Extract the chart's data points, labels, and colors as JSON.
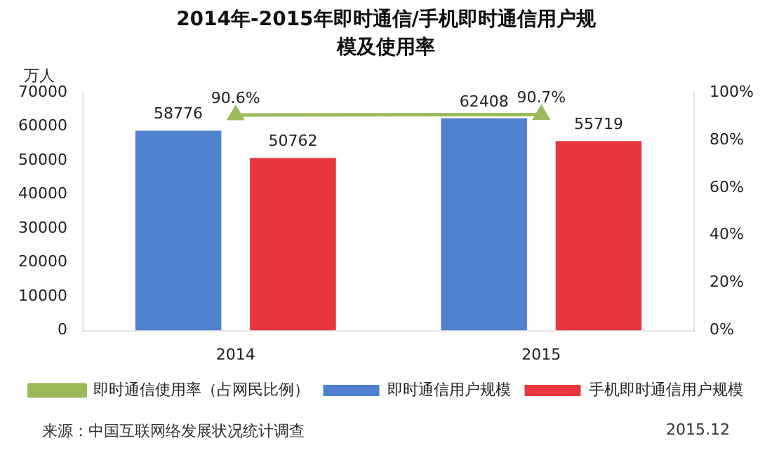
{
  "chart_data": {
    "type": "bar",
    "title": "2014年-2015年即时通信/手机即时通信用户规模及使用率",
    "ylabel": "万人",
    "categories": [
      "2014",
      "2015"
    ],
    "series": [
      {
        "name": "即时通信用户规模",
        "color": "#4f81d0",
        "values": [
          58776,
          62408
        ],
        "value_labels": [
          "58776",
          "62408"
        ]
      },
      {
        "name": "手机即时通信用户规模",
        "color": "#e8383d",
        "values": [
          50762,
          55719
        ],
        "value_labels": [
          "50762",
          "55719"
        ]
      },
      {
        "name": "即时通信使用率（占网民比例）",
        "type": "line",
        "axis": "y2",
        "color": "#9bbb59",
        "values": [
          90.6,
          90.7
        ],
        "value_labels": [
          "90.6%",
          "90.7%"
        ]
      }
    ],
    "ylim": [
      0,
      70000
    ],
    "yticks": [
      0,
      10000,
      20000,
      30000,
      40000,
      50000,
      60000,
      70000
    ],
    "y2lim": [
      0,
      100
    ],
    "y2ticks": [
      {
        "value": 0,
        "label": "0%"
      },
      {
        "value": 20,
        "label": "20%"
      },
      {
        "value": 40,
        "label": "40%"
      },
      {
        "value": 60,
        "label": "60%"
      },
      {
        "value": 80,
        "label": "80%"
      },
      {
        "value": 100,
        "label": "100%"
      }
    ],
    "grid": false,
    "legend": "bottom",
    "marker": "triangle",
    "annotations": [
      "来源：中国互联网络发展状况统计调查",
      "2015.12"
    ]
  }
}
